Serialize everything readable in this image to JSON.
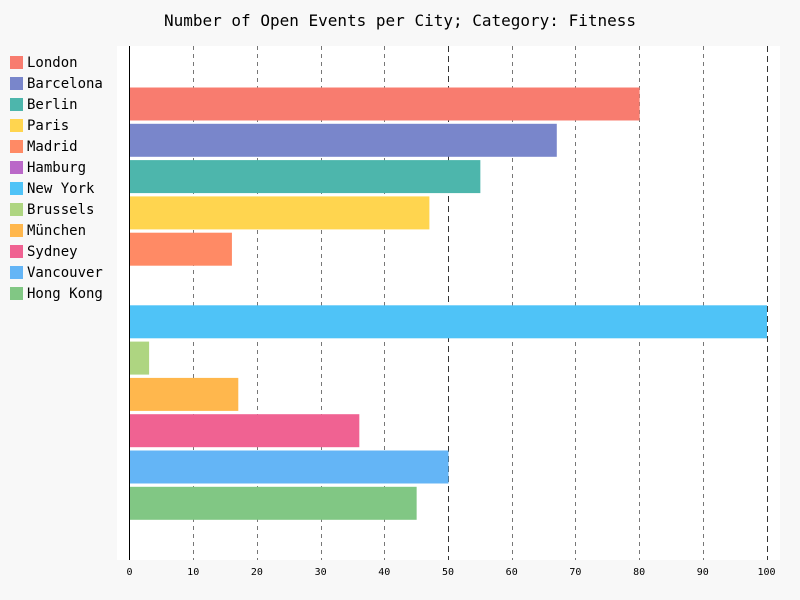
{
  "chart_data": {
    "type": "bar",
    "orientation": "horizontal",
    "title": "Number of Open Events per City; Category: Fitness",
    "xlabel": "",
    "ylabel": "",
    "xlim": [
      0,
      100
    ],
    "x_ticks": [
      0,
      10,
      20,
      30,
      40,
      50,
      60,
      70,
      80,
      90,
      100
    ],
    "grid": "vertical dashed",
    "legend_position": "left",
    "series": [
      {
        "name": "London",
        "value": 80,
        "color": "#f87c6f"
      },
      {
        "name": "Barcelona",
        "value": 67,
        "color": "#7986cb"
      },
      {
        "name": "Berlin",
        "value": 55,
        "color": "#4db6ac"
      },
      {
        "name": "Paris",
        "value": 47,
        "color": "#ffd54f"
      },
      {
        "name": "Madrid",
        "value": 16,
        "color": "#ff8a65"
      },
      {
        "name": "Hamburg",
        "value": 0,
        "color": "#ba68c8"
      },
      {
        "name": "New York",
        "value": 100,
        "color": "#4fc3f7"
      },
      {
        "name": "Brussels",
        "value": 3,
        "color": "#aed581"
      },
      {
        "name": "München",
        "value": 17,
        "color": "#ffb74d"
      },
      {
        "name": "Sydney",
        "value": 36,
        "color": "#f06292"
      },
      {
        "name": "Vancouver",
        "value": 50,
        "color": "#64b5f6"
      },
      {
        "name": "Hong Kong",
        "value": 45,
        "color": "#81c784"
      }
    ]
  }
}
